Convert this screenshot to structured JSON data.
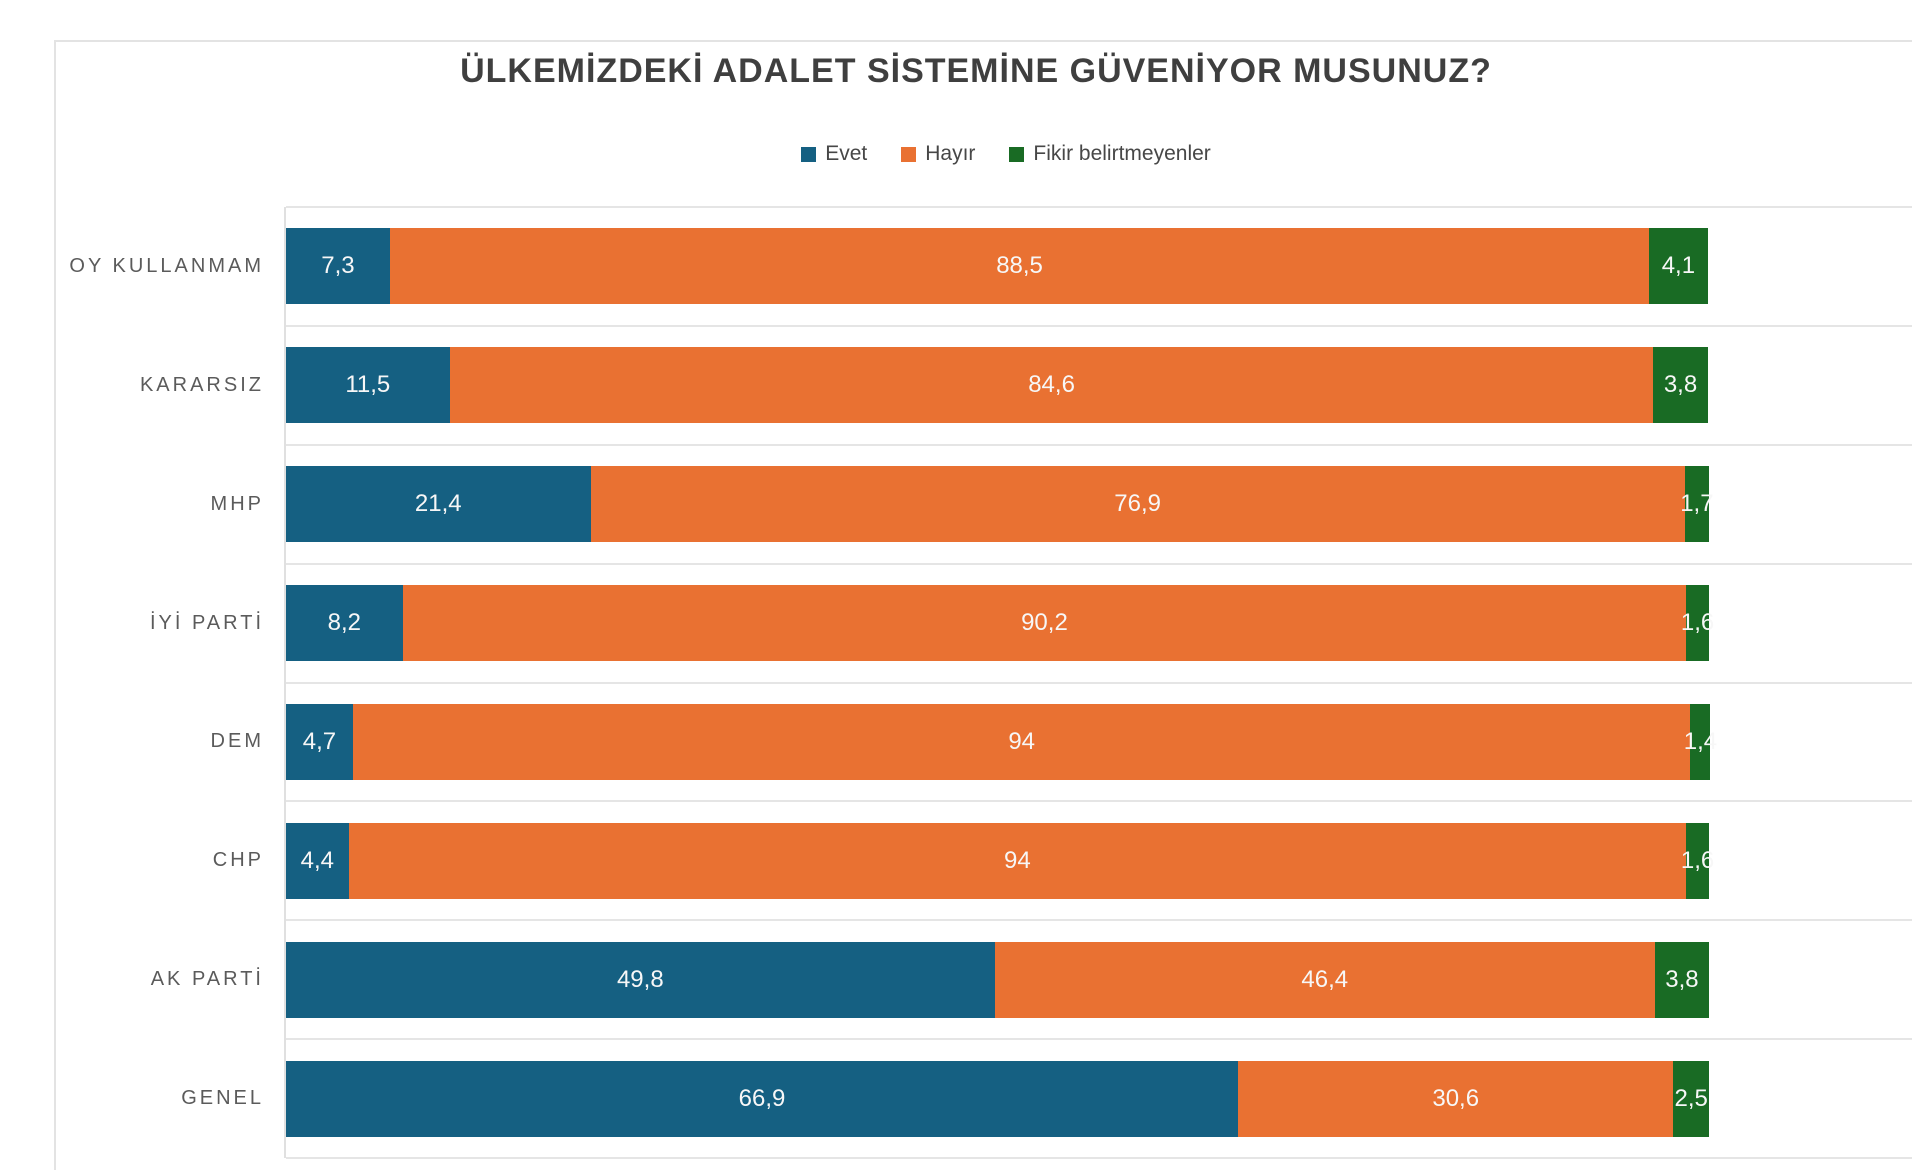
{
  "chart_data": {
    "type": "bar",
    "variant": "stacked-100",
    "orientation": "horizontal",
    "title": "ÜLKEMİZDEKİ ADALET SİSTEMİNE GÜVENİYOR MUSUNUZ?",
    "legend_position": "top-center",
    "gridlines": "category-separators",
    "xlim": [
      0,
      114
    ],
    "axis_labels_visible": false,
    "categories": [
      "OY KULLANMAM",
      "KARARSIZ",
      "MHP",
      "İYİ PARTİ",
      "DEM",
      "CHP",
      "AK PARTİ",
      "GENEL"
    ],
    "series": [
      {
        "name": "Evet",
        "color": "#156082",
        "values": [
          7.3,
          11.5,
          21.4,
          8.2,
          4.7,
          4.4,
          49.8,
          66.9
        ],
        "labels": [
          "7,3",
          "11,5",
          "21,4",
          "8,2",
          "4,7",
          "4,4",
          "49,8",
          "66,9"
        ]
      },
      {
        "name": "Hayır",
        "color": "#E97132",
        "values": [
          88.5,
          84.6,
          76.9,
          90.2,
          94,
          94,
          46.4,
          30.6
        ],
        "labels": [
          "88,5",
          "84,6",
          "76,9",
          "90,2",
          "94",
          "94",
          "46,4",
          "30,6"
        ]
      },
      {
        "name": "Fikir belirtmeyenler",
        "color": "#196B24",
        "values": [
          4.1,
          3.8,
          1.7,
          1.6,
          1.4,
          1.6,
          3.8,
          2.5
        ],
        "labels": [
          "4,1",
          "3,8",
          "1,7",
          "1,6",
          "1,4",
          "1,6",
          "3,8",
          "2,5"
        ]
      }
    ],
    "data_label_color": "#f7f7f7",
    "title_color": "#3f3f3f",
    "category_label_color": "#5b5b5b",
    "gridline_color": "#e5e5e5"
  }
}
